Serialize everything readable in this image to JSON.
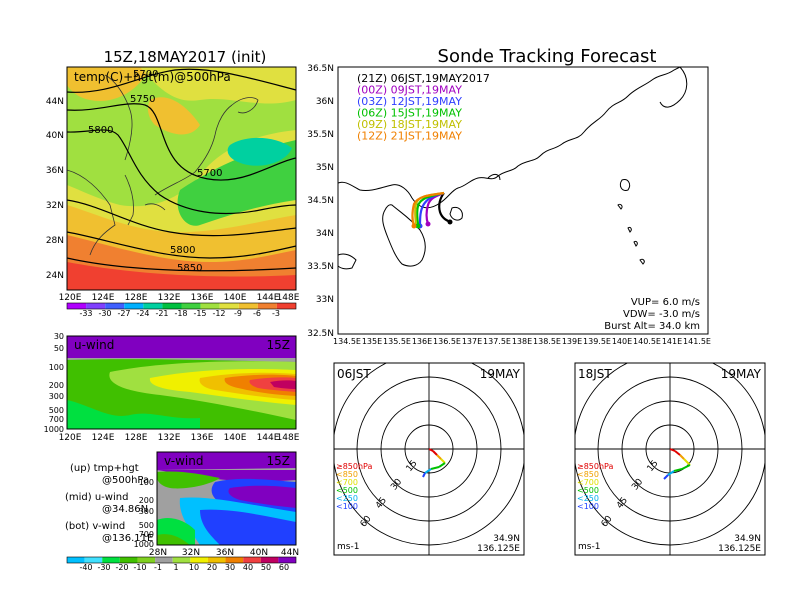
{
  "map": {
    "title": "15Z,18MAY2017 (init)",
    "inner_label": "temp(C)+hgt(m)@500hPa",
    "lat_ticks": [
      "44N",
      "40N",
      "36N",
      "32N",
      "28N",
      "24N"
    ],
    "lon_ticks": [
      "120E",
      "124E",
      "128E",
      "132E",
      "136E",
      "140E",
      "144E",
      "148E"
    ],
    "contour_labels": [
      "5700",
      "5750",
      "5800",
      "5700",
      "5800",
      "5850"
    ],
    "colorbar_ticks": [
      "-33",
      "-30",
      "-27",
      "-24",
      "-21",
      "-18",
      "-15",
      "-12",
      "-9",
      "-6",
      "-3"
    ],
    "colors": [
      "#b000ff",
      "#8040ff",
      "#4060ff",
      "#00b0ff",
      "#00d0a0",
      "#00c040",
      "#40d040",
      "#a0e040",
      "#e0e040",
      "#f0c030",
      "#f08030",
      "#f04030"
    ]
  },
  "uwind": {
    "label": "u-wind",
    "time": "15Z",
    "y_ticks": [
      "30",
      "50",
      "100",
      "200",
      "300",
      "500",
      "700",
      "1000"
    ],
    "x_ticks": [
      "120E",
      "124E",
      "128E",
      "132E",
      "136E",
      "140E",
      "144E",
      "148E"
    ]
  },
  "vwind": {
    "label": "v-wind",
    "time": "15Z",
    "y_ticks": [
      "100",
      "200",
      "300",
      "500",
      "700",
      "1000"
    ],
    "x_ticks": [
      "28N",
      "32N",
      "36N",
      "40N",
      "44N"
    ]
  },
  "notes": {
    "up1": "(up) tmp+hgt",
    "up2": "@500hPa",
    "mid1": "(mid) u-wind",
    "mid2": "@34.86N",
    "bot1": "(bot) v-wind",
    "bot2": "@136.11E"
  },
  "wind_colorbar": {
    "ticks": [
      "-40",
      "-30",
      "-20",
      "-10",
      "-1",
      "1",
      "10",
      "20",
      "30",
      "40",
      "50",
      "60"
    ],
    "colors": [
      "#00c0ff",
      "#40e0ff",
      "#00e040",
      "#40c000",
      "#80d020",
      "#a0a0a0",
      "#a0e040",
      "#f0f000",
      "#f0c000",
      "#f08000",
      "#f04040",
      "#c00060",
      "#8000c0"
    ]
  },
  "track": {
    "title": "Sonde Tracking Forecast",
    "legend": [
      {
        "label": "(21Z) 06JST,19MAY2017",
        "color": "#000000"
      },
      {
        "label": "(00Z) 09JST,19MAY",
        "color": "#a000c0"
      },
      {
        "label": "(03Z) 12JST,19MAY",
        "color": "#3040ff"
      },
      {
        "label": "(06Z) 15JST,19MAY",
        "color": "#00c000"
      },
      {
        "label": "(09Z) 18JST,19MAY",
        "color": "#c0c000"
      },
      {
        "label": "(12Z) 21JST,19MAY",
        "color": "#f08000"
      }
    ],
    "lat_ticks": [
      "36.5N",
      "36N",
      "35.5N",
      "35N",
      "34.5N",
      "34N",
      "33.5N",
      "33N",
      "32.5N"
    ],
    "lon_ticks": [
      "134.5E",
      "135E",
      "135.5E",
      "136E",
      "136.5E",
      "137E",
      "137.5E",
      "138E",
      "138.5E",
      "139E",
      "139.5E",
      "140E",
      "140.5E",
      "141E",
      "141.5E"
    ],
    "vup": "VUP=  6.0 m/s",
    "vdw": "VDW= -3.0 m/s",
    "burst": "Burst Alt= 34.0 km"
  },
  "polar_left": {
    "time": "06JST",
    "date": "19MAY",
    "ring_labels": [
      "15",
      "30",
      "45",
      "60"
    ],
    "levels": [
      {
        "label": "≥850hPa",
        "color": "#e00000"
      },
      {
        "label": "<850",
        "color": "#f0a000"
      },
      {
        "label": "<700",
        "color": "#e0e000"
      },
      {
        "label": "<500",
        "color": "#00c000"
      },
      {
        "label": "<250",
        "color": "#00b0f0"
      },
      {
        "label": "<100",
        "color": "#2040ff"
      }
    ],
    "lat": "34.9N",
    "lon": "136.125E",
    "unit": "ms-1"
  },
  "polar_right": {
    "time": "18JST",
    "date": "19MAY",
    "ring_labels": [
      "15",
      "30",
      "45",
      "60"
    ],
    "levels": [
      {
        "label": "≥850hPa",
        "color": "#e00000"
      },
      {
        "label": "<850",
        "color": "#f0a000"
      },
      {
        "label": "<700",
        "color": "#e0e000"
      },
      {
        "label": "<500",
        "color": "#00c000"
      },
      {
        "label": "<250",
        "color": "#00b0f0"
      },
      {
        "label": "<100",
        "color": "#2040ff"
      }
    ],
    "lat": "34.9N",
    "lon": "136.125E",
    "unit": "ms-1"
  }
}
